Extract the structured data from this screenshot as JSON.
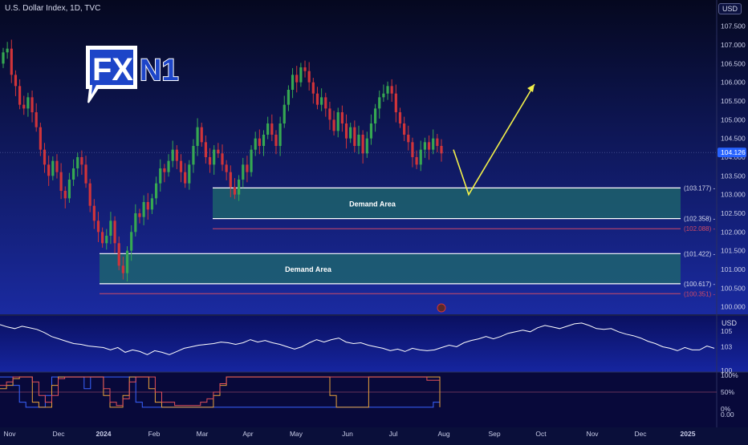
{
  "header": {
    "symbol_title": "U.S. Dollar Index, 1D, TVC",
    "currency": "USD",
    "logo_text_1": "FX",
    "logo_text_2": "N1"
  },
  "colors": {
    "bg_top": "#060a2a",
    "bg_bottom": "#16228f",
    "bull": "#36a852",
    "bear": "#d0343a",
    "zone_fill": "#1f6b6b",
    "zone_line": "#ffffff",
    "invalidation_line": "#d04a66",
    "projection": "#f2f04a",
    "price_badge": "#2762ff",
    "osc_line": "#ffffff",
    "stoch_blue": "#3a63ff",
    "stoch_orange": "#e8a23a",
    "stoch_red": "#e0505a"
  },
  "chart_data": [
    {
      "type": "candlestick",
      "title": "U.S. Dollar Index, 1D, TVC",
      "ylim": [
        99.8,
        107.9
      ],
      "y_ticks": [
        "107.500",
        "107.000",
        "106.500",
        "106.000",
        "105.500",
        "105.000",
        "104.500",
        "104.000",
        "103.500",
        "103.000",
        "102.500",
        "102.000",
        "101.500",
        "101.000",
        "100.500",
        "100.000"
      ],
      "y_tick_values": [
        107.5,
        107,
        106.5,
        106,
        105.5,
        105,
        104.5,
        104,
        103.5,
        103,
        102.5,
        102,
        101.5,
        101,
        100.5,
        100
      ],
      "x_ticks": [
        "Nov",
        "Dec",
        "2024",
        "Feb",
        "Mar",
        "Apr",
        "May",
        "Jun",
        "Jul",
        "Aug",
        "Sep",
        "Oct",
        "Nov",
        "Dec",
        "2025"
      ],
      "current_price": "104.126",
      "current_price_value": 104.126,
      "closes": [
        106.8,
        106.9,
        106.2,
        105.9,
        105.4,
        105.3,
        105.6,
        105.2,
        104.8,
        104.2,
        103.8,
        103.5,
        103.9,
        103.6,
        103.1,
        102.9,
        103.4,
        103.7,
        104.0,
        103.8,
        103.3,
        102.7,
        102.3,
        102.0,
        101.7,
        101.9,
        102.3,
        101.7,
        101.1,
        100.9,
        101.5,
        102.0,
        102.5,
        102.4,
        102.8,
        102.6,
        102.9,
        103.3,
        103.7,
        103.6,
        103.9,
        104.2,
        103.9,
        103.6,
        103.3,
        103.8,
        104.3,
        104.8,
        104.4,
        104.0,
        103.8,
        104.2,
        104.1,
        103.8,
        103.6,
        103.2,
        103.0,
        103.4,
        103.8,
        103.6,
        104.2,
        104.5,
        104.3,
        104.6,
        104.9,
        104.6,
        104.3,
        104.9,
        105.4,
        105.8,
        106.2,
        106.0,
        106.4,
        106.3,
        106.0,
        105.7,
        105.4,
        105.6,
        105.3,
        105.0,
        104.7,
        105.2,
        104.9,
        104.5,
        104.8,
        104.3,
        104.6,
        104.1,
        104.5,
        104.9,
        105.3,
        105.6,
        105.7,
        105.9,
        105.7,
        105.2,
        104.9,
        104.6,
        104.4,
        104.0,
        103.8,
        104.2,
        104.4,
        104.2,
        104.5,
        104.3,
        104.1
      ],
      "zones": [
        {
          "label": "Demand Area",
          "top": 103.177,
          "bottom": 102.358,
          "invalidation": 102.088
        },
        {
          "label": "Demand Area",
          "top": 101.422,
          "bottom": 100.617,
          "invalidation": 100.351
        }
      ],
      "level_labels": [
        "103.177",
        "102.358",
        "102.088",
        "101.422",
        "100.617",
        "100.351"
      ],
      "projection_path": [
        [
          104.2,
          null
        ],
        [
          103.0,
          null
        ],
        [
          105.95,
          null
        ]
      ]
    },
    {
      "type": "line",
      "ylim": [
        100,
        106.5
      ],
      "y_ticks": [
        "105",
        "103",
        "100"
      ],
      "y_tick_values": [
        105,
        103,
        100
      ],
      "series": [
        {
          "values": [
            105.8,
            105.5,
            105.3,
            105.6,
            105.4,
            105.2,
            104.8,
            104.3,
            104.0,
            103.7,
            103.4,
            103.3,
            103.1,
            103.0,
            102.9,
            102.6,
            102.9,
            102.3,
            102.6,
            102.4,
            102.0,
            102.5,
            102.3,
            102.0,
            102.4,
            102.8,
            103.0,
            103.2,
            103.3,
            103.4,
            103.6,
            103.5,
            103.3,
            103.5,
            103.9,
            103.6,
            103.8,
            103.5,
            103.3,
            103.0,
            102.7,
            103.0,
            103.5,
            103.9,
            103.6,
            103.9,
            104.1,
            103.6,
            103.4,
            103.5,
            103.2,
            103.0,
            102.8,
            102.5,
            102.7,
            102.4,
            102.8,
            102.6,
            102.5,
            102.6,
            102.9,
            103.2,
            103.0,
            103.5,
            103.8,
            104.0,
            104.3,
            104.0,
            104.3,
            104.7,
            104.9,
            105.1,
            104.9,
            105.4,
            105.7,
            105.5,
            105.3,
            105.6,
            105.9,
            106.0,
            105.7,
            105.3,
            105.2,
            105.3,
            104.9,
            104.6,
            104.4,
            104.1,
            103.7,
            103.4,
            103.0,
            102.8,
            102.5,
            102.9,
            102.6,
            102.6,
            103.1,
            102.8
          ]
        }
      ]
    },
    {
      "type": "line",
      "ylim": [
        0,
        100
      ],
      "y_ticks": [
        "100%",
        "50%",
        "0%",
        "0.00"
      ],
      "series": [
        {
          "values": [
            95,
            95,
            70,
            20,
            5,
            5,
            5,
            40,
            95,
            95,
            95,
            95,
            95,
            60,
            95,
            95,
            95,
            95,
            95,
            95,
            95,
            20,
            5,
            5,
            5,
            5,
            5,
            5,
            5,
            5,
            5,
            5,
            5,
            5,
            5,
            5,
            5,
            5,
            5,
            5,
            5,
            5,
            5,
            5,
            5,
            5,
            5,
            5,
            5,
            5,
            5,
            5,
            5,
            5,
            5,
            5,
            5,
            5,
            5,
            5,
            5,
            5,
            5,
            5,
            5,
            5,
            5,
            20,
            20
          ]
        },
        {
          "values": [
            60,
            70,
            90,
            95,
            95,
            20,
            5,
            5,
            70,
            95,
            95,
            95,
            95,
            95,
            95,
            95,
            40,
            5,
            5,
            40,
            95,
            95,
            95,
            60,
            20,
            5,
            5,
            5,
            5,
            5,
            5,
            5,
            5,
            40,
            70,
            95,
            95,
            95,
            95,
            95,
            95,
            95,
            95,
            95,
            95,
            95,
            95,
            95,
            95,
            95,
            95,
            40,
            5,
            5,
            5,
            5,
            5,
            95,
            95,
            95,
            95,
            95,
            95,
            95,
            95,
            95,
            95,
            95,
            5
          ]
        },
        {
          "values": [
            70,
            80,
            95,
            95,
            95,
            80,
            40,
            20,
            40,
            90,
            95,
            95,
            95,
            95,
            95,
            95,
            60,
            20,
            10,
            30,
            80,
            95,
            95,
            95,
            50,
            20,
            20,
            10,
            10,
            10,
            10,
            20,
            30,
            50,
            75,
            95,
            95,
            95,
            95,
            95,
            95,
            95,
            95,
            95,
            95,
            95,
            95,
            95,
            95,
            95,
            95,
            95,
            95,
            95,
            95,
            95,
            95,
            95,
            95,
            95,
            95,
            95,
            95,
            95,
            95,
            95,
            85,
            85,
            85
          ]
        }
      ]
    }
  ]
}
